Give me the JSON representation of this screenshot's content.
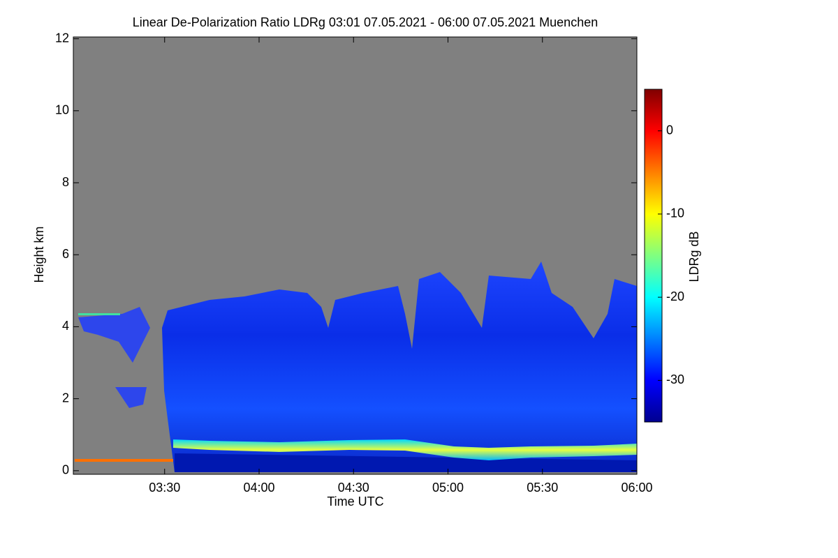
{
  "chart_data": {
    "type": "heatmap",
    "title": "Linear De-Polarization Ratio LDRg   03:01 07.05.2021 - 06:00 07.05.2021 Muenchen",
    "xlabel": "Time UTC",
    "ylabel": "Height km",
    "xlim": [
      181,
      360
    ],
    "xticks": [
      {
        "value": 210,
        "label": "03:30"
      },
      {
        "value": 240,
        "label": "04:00"
      },
      {
        "value": 270,
        "label": "04:30"
      },
      {
        "value": 300,
        "label": "05:00"
      },
      {
        "value": 330,
        "label": "05:30"
      },
      {
        "value": 360,
        "label": "06:00"
      }
    ],
    "ylim": [
      -0.1,
      12.05
    ],
    "yticks": [
      0,
      2,
      4,
      6,
      8,
      10,
      12
    ],
    "colorbar": {
      "label": "LDRg dB",
      "clim": [
        -35,
        5
      ],
      "ticks": [
        -30,
        -20,
        -10,
        0
      ],
      "colormap": [
        "#00008f",
        "#0000ff",
        "#0080ff",
        "#00ffff",
        "#80ff80",
        "#ffff00",
        "#ff8000",
        "#ff0000",
        "#800000"
      ]
    }
  }
}
